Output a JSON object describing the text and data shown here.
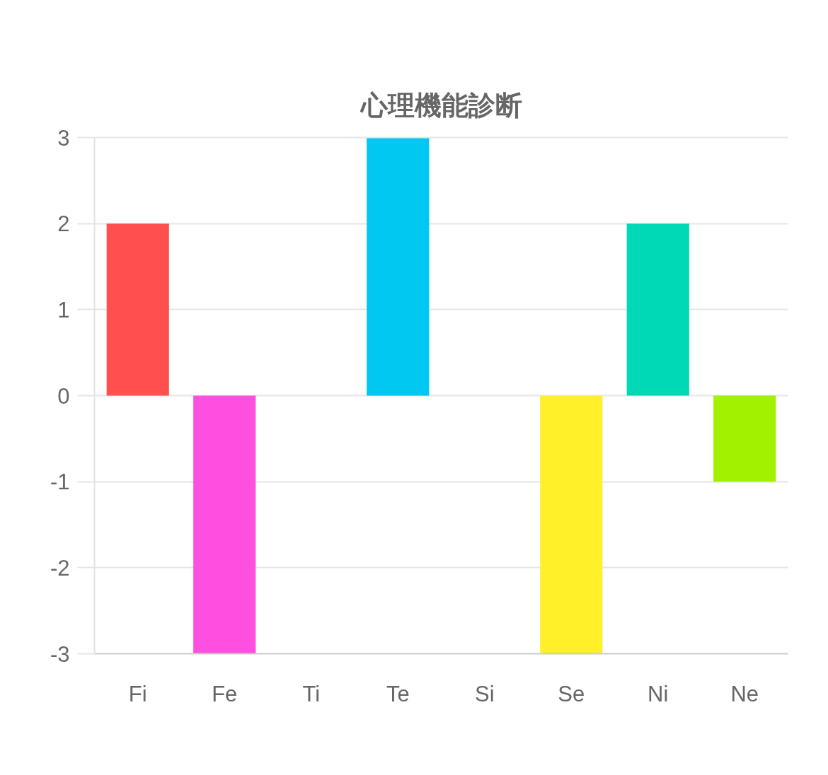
{
  "chart_data": {
    "type": "bar",
    "title": "心理機能診断",
    "categories": [
      "Fi",
      "Fe",
      "Ti",
      "Te",
      "Si",
      "Se",
      "Ni",
      "Ne"
    ],
    "values": [
      2,
      -3,
      0,
      3,
      0,
      -3,
      2,
      -1
    ],
    "colors": [
      "#ff4f4f",
      "#ff4fe0",
      null,
      "#00c8f0",
      null,
      "#fff02a",
      "#00d9b6",
      "#a2f200"
    ],
    "ylim": [
      -3,
      3
    ],
    "yticks": [
      -3,
      -2,
      -1,
      0,
      1,
      2,
      3
    ],
    "grid": "y"
  }
}
